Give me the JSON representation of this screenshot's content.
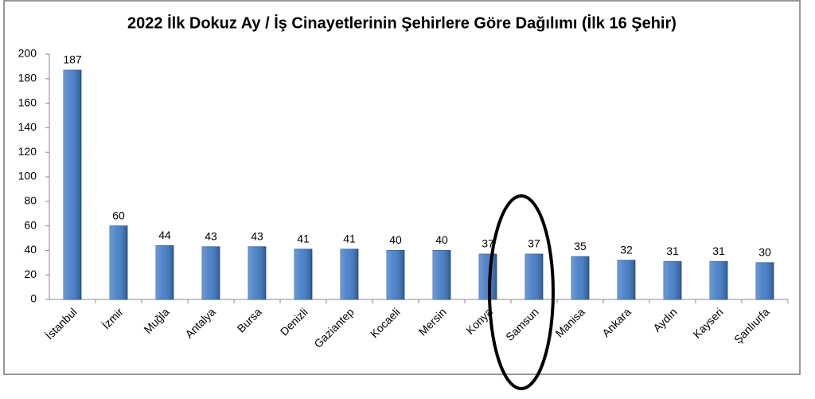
{
  "chart_data": {
    "type": "bar",
    "title": "2022 İlk Dokuz Ay / İş Cinayetlerinin Şehirlere Göre Dağılımı (İlk 16 Şehir)",
    "categories": [
      "İstanbul",
      "İzmir",
      "Muğla",
      "Antalya",
      "Bursa",
      "Denizli",
      "Gaziantep",
      "Kocaeli",
      "Mersin",
      "Konya",
      "Samsun",
      "Manisa",
      "Ankara",
      "Aydın",
      "Kayseri",
      "Şanlıurfa"
    ],
    "values": [
      187,
      60,
      44,
      43,
      43,
      41,
      41,
      40,
      40,
      37,
      37,
      35,
      32,
      31,
      31,
      30
    ],
    "color": "#3d78c4",
    "ylim": [
      0,
      200
    ],
    "yticks": [
      0,
      20,
      40,
      60,
      80,
      100,
      120,
      140,
      160,
      180,
      200
    ],
    "grid": false
  }
}
